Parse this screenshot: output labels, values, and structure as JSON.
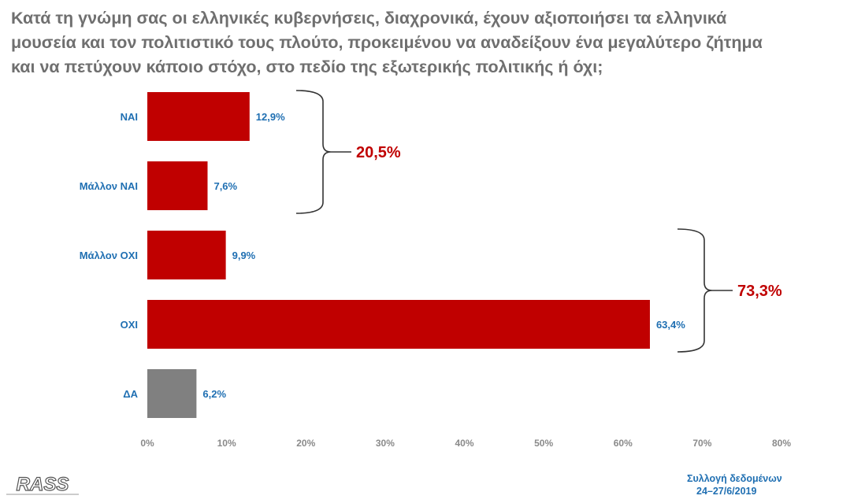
{
  "question": {
    "line1": "Κατά τη γνώμη σας οι ελληνικές κυβερνήσεις, διαχρονικά, έχουν αξιοποιήσει τα ελληνικά",
    "line2": "μουσεία και τον πολιτιστικό τους πλούτο, προκειμένου να αναδείξουν ένα μεγαλύτερο ζήτημα",
    "line3": "και να πετύχουν κάποιο στόχο, στο πεδίο της εξωτερικής πολιτικής ή όχι;"
  },
  "chart_data": {
    "type": "bar",
    "orientation": "horizontal",
    "categories": [
      "ΝΑΙ",
      "Μάλλον ΝΑΙ",
      "Μάλλον ΟΧΙ",
      "ΟΧΙ",
      "ΔΑ"
    ],
    "values": [
      12.9,
      7.6,
      9.9,
      63.4,
      6.2
    ],
    "value_labels": [
      "12,9%",
      "7,6%",
      "9,9%",
      "63,4%",
      "6,2%"
    ],
    "bar_colors": [
      "#c00000",
      "#c00000",
      "#c00000",
      "#c00000",
      "#808080"
    ],
    "xlim": [
      0,
      80
    ],
    "x_ticks": [
      "0%",
      "10%",
      "20%",
      "30%",
      "40%",
      "50%",
      "60%",
      "70%",
      "80%"
    ],
    "grid": false,
    "groups": [
      {
        "label": "20,5%",
        "categories": [
          "ΝΑΙ",
          "Μάλλον ΝΑΙ"
        ],
        "color": "#c00000"
      },
      {
        "label": "73,3%",
        "categories": [
          "Μάλλον ΟΧΙ",
          "ΟΧΙ"
        ],
        "color": "#c00000"
      }
    ]
  },
  "footer": {
    "line1": "Συλλογή δεδομένων",
    "line2": "24–27/6/2019"
  },
  "logo": {
    "text": "RASS",
    "icon": "rass-logo"
  }
}
